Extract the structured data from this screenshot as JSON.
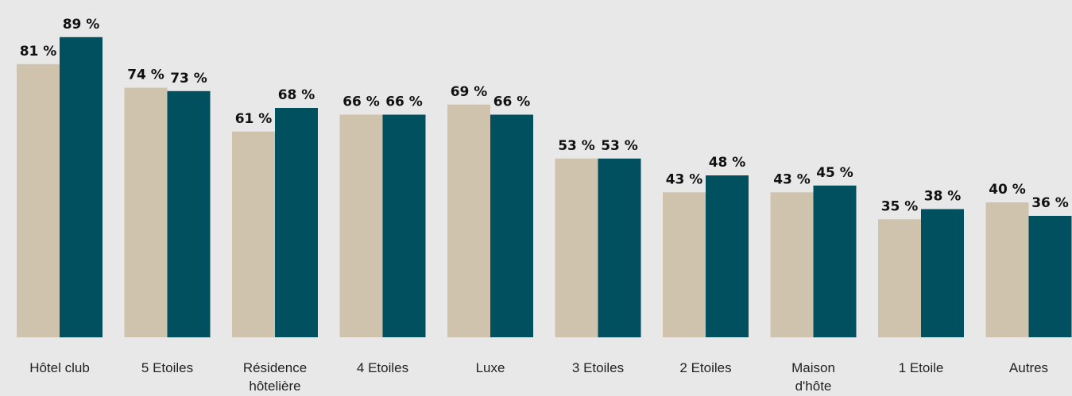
{
  "chart_data": {
    "type": "bar",
    "categories": [
      [
        "Hôtel club"
      ],
      [
        "5 Etoiles"
      ],
      [
        "Résidence",
        "hôtelière"
      ],
      [
        "4 Etoiles"
      ],
      [
        "Luxe"
      ],
      [
        "3 Etoiles"
      ],
      [
        "2 Etoiles"
      ],
      [
        "Maison",
        "d'hôte"
      ],
      [
        "1 Etoile"
      ],
      [
        "Autres"
      ]
    ],
    "series": [
      {
        "color": "#cfc3ae",
        "values": [
          81,
          74,
          61,
          66,
          69,
          53,
          43,
          43,
          35,
          40
        ],
        "labels": [
          "81 %",
          "74 %",
          "61 %",
          "66 %",
          "69 %",
          "53 %",
          "43 %",
          "43 %",
          "35 %",
          "40 %"
        ]
      },
      {
        "color": "#005060",
        "values": [
          89,
          73,
          68,
          66,
          66,
          53,
          48,
          45,
          38,
          36
        ],
        "labels": [
          "89 %",
          "73 %",
          "68 %",
          "66 %",
          "66 %",
          "53 %",
          "48 %",
          "45 %",
          "38 %",
          "36 %"
        ]
      }
    ],
    "ylim": [
      0,
      100
    ],
    "grid": false,
    "legend": "none"
  }
}
